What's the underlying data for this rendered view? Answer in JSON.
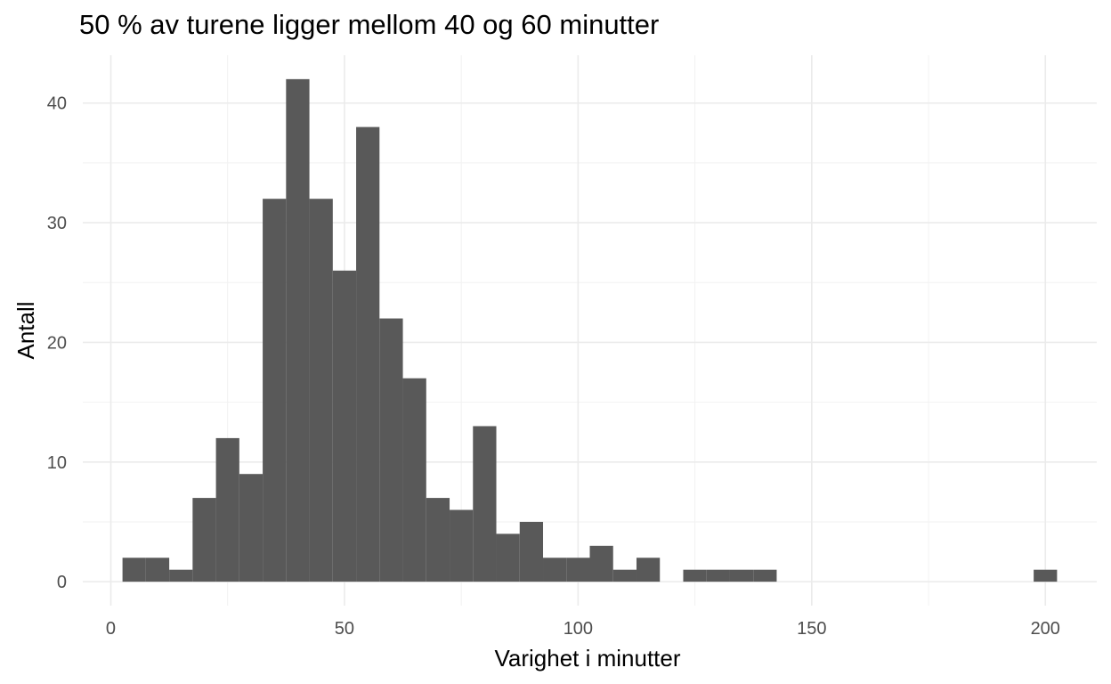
{
  "chart_data": {
    "type": "bar",
    "title": "50 % av turene ligger mellom 40 og 60 minutter",
    "xlabel": "Varighet i minutter",
    "ylabel": "Antall",
    "xlim": [
      -6,
      211
    ],
    "ylim": [
      -2,
      44
    ],
    "x_ticks": [
      0,
      50,
      100,
      150,
      200
    ],
    "x_tick_labels": [
      "0",
      "50",
      "100",
      "150",
      "200"
    ],
    "y_ticks": [
      0,
      10,
      20,
      30,
      40
    ],
    "y_tick_labels": [
      "0",
      "10",
      "20",
      "30",
      "40"
    ],
    "x_minor_ticks": [
      25,
      75,
      125,
      175
    ],
    "y_minor_ticks": [
      5,
      15,
      25,
      35
    ],
    "bin_width": 5,
    "bins": [
      {
        "x": 5,
        "count": 2
      },
      {
        "x": 10,
        "count": 2
      },
      {
        "x": 15,
        "count": 1
      },
      {
        "x": 20,
        "count": 7
      },
      {
        "x": 25,
        "count": 12
      },
      {
        "x": 30,
        "count": 9
      },
      {
        "x": 35,
        "count": 32
      },
      {
        "x": 40,
        "count": 42
      },
      {
        "x": 45,
        "count": 32
      },
      {
        "x": 50,
        "count": 26
      },
      {
        "x": 55,
        "count": 38
      },
      {
        "x": 60,
        "count": 22
      },
      {
        "x": 65,
        "count": 17
      },
      {
        "x": 70,
        "count": 7
      },
      {
        "x": 75,
        "count": 6
      },
      {
        "x": 80,
        "count": 13
      },
      {
        "x": 85,
        "count": 4
      },
      {
        "x": 90,
        "count": 5
      },
      {
        "x": 95,
        "count": 2
      },
      {
        "x": 100,
        "count": 2
      },
      {
        "x": 105,
        "count": 3
      },
      {
        "x": 110,
        "count": 1
      },
      {
        "x": 115,
        "count": 2
      },
      {
        "x": 120,
        "count": 0
      },
      {
        "x": 125,
        "count": 1
      },
      {
        "x": 130,
        "count": 1
      },
      {
        "x": 135,
        "count": 1
      },
      {
        "x": 140,
        "count": 1
      },
      {
        "x": 200,
        "count": 1
      }
    ],
    "grid": true,
    "bar_color": "#595959",
    "grid_major_color": "#ebebeb",
    "grid_minor_color": "#f2f2f2"
  }
}
